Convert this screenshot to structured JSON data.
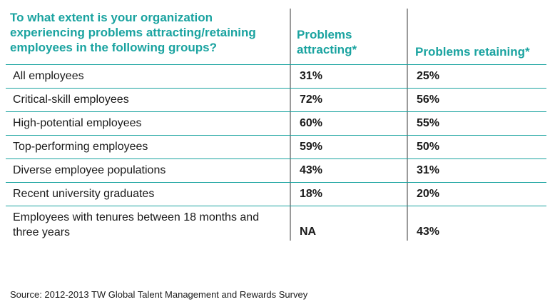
{
  "chart_data": {
    "type": "table",
    "columns": [
      "To what extent is your organization experiencing problems attracting/retaining employees in the following groups?",
      "Problems attracting*",
      "Problems retaining*"
    ],
    "rows": [
      [
        "All employees",
        "31%",
        "25%"
      ],
      [
        "Critical-skill employees",
        "72%",
        "56%"
      ],
      [
        "High-potential employees",
        "60%",
        "55%"
      ],
      [
        "Top-performing employees",
        "59%",
        "50%"
      ],
      [
        "Diverse employee populations",
        "43%",
        "31%"
      ],
      [
        "Recent university graduates",
        "18%",
        "20%"
      ],
      [
        "Employees with tenures between 18 months and three years",
        "NA",
        "43%"
      ]
    ],
    "header_color": "#1aa3a0",
    "source": "Source: 2012-2013 TW Global Talent Management and Rewards Survey"
  }
}
